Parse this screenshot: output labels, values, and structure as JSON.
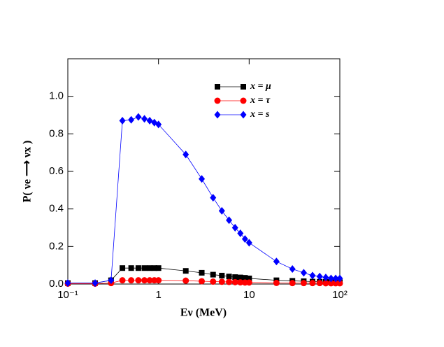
{
  "chart_data": {
    "type": "line",
    "x_label": "Eν (MeV)",
    "y_label": "P( νe ⟶ νx )",
    "xscale": "log",
    "xlim": [
      0.1,
      100
    ],
    "ylim": [
      0,
      1.2
    ],
    "xticks": [
      {
        "value": 0.1,
        "label": "10⁻¹"
      },
      1,
      10,
      {
        "value": 100,
        "label": "10²"
      }
    ],
    "yticks": [
      {
        "value": 0,
        "label": "0.0"
      },
      0.2,
      0.4,
      0.6,
      0.8,
      {
        "value": 1,
        "label": "1.0"
      }
    ],
    "legend": "upper right",
    "x": [
      0.1,
      0.2,
      0.3,
      0.4,
      0.5,
      0.6,
      0.7,
      0.8,
      0.9,
      1,
      2,
      3,
      4,
      5,
      6,
      7,
      8,
      9,
      10,
      20,
      30,
      40,
      50,
      60,
      70,
      80,
      90,
      100
    ],
    "series": [
      {
        "name": "x = μ",
        "color": "#000000",
        "marker": "square",
        "values": [
          0.005,
          0.005,
          0.02,
          0.085,
          0.085,
          0.085,
          0.085,
          0.085,
          0.085,
          0.085,
          0.07,
          0.06,
          0.05,
          0.045,
          0.04,
          0.037,
          0.035,
          0.033,
          0.03,
          0.02,
          0.017,
          0.015,
          0.013,
          0.012,
          0.011,
          0.01,
          0.01,
          0.01
        ]
      },
      {
        "name": "x = τ",
        "color": "#ff0000",
        "marker": "circle",
        "values": [
          0.002,
          0.002,
          0.005,
          0.02,
          0.02,
          0.02,
          0.02,
          0.02,
          0.02,
          0.02,
          0.018,
          0.015,
          0.013,
          0.012,
          0.011,
          0.01,
          0.009,
          0.008,
          0.008,
          0.006,
          0.005,
          0.005,
          0.005,
          0.005,
          0.004,
          0.004,
          0.004,
          0.004
        ]
      },
      {
        "name": "x = s",
        "color": "#0000ff",
        "marker": "diamond",
        "values": [
          0.005,
          0.005,
          0.02,
          0.87,
          0.875,
          0.89,
          0.88,
          0.87,
          0.86,
          0.85,
          0.69,
          0.56,
          0.46,
          0.39,
          0.34,
          0.3,
          0.27,
          0.24,
          0.22,
          0.12,
          0.08,
          0.06,
          0.045,
          0.04,
          0.035,
          0.03,
          0.03,
          0.03
        ]
      }
    ]
  }
}
